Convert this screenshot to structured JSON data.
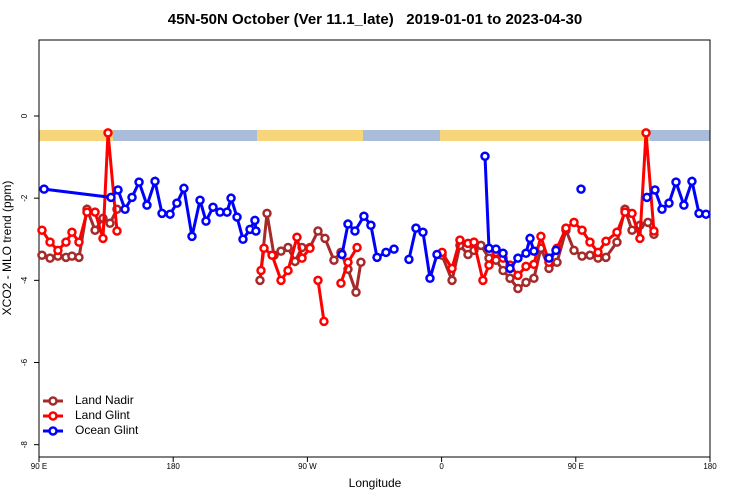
{
  "chart_data": {
    "type": "line",
    "title": "45N-50N October (Ver 11.1_late)   2019-01-01 to 2023-04-30",
    "x_label": "Longitude",
    "y_label": "XCO2 - MLO trend (ppm)",
    "xlim": [
      90,
      540
    ],
    "ylim": [
      -8.3,
      1.85
    ],
    "xticks": [
      {
        "value": 90,
        "label": "90 E"
      },
      180,
      {
        "value": 270,
        "label": "90 W"
      },
      {
        "value": 360,
        "label": "0"
      },
      {
        "value": 450,
        "label": "90 E"
      },
      {
        "value": 540,
        "label": "180"
      }
    ],
    "yticks": [
      -8,
      -6,
      -4,
      -2,
      0
    ],
    "legend": "lower left",
    "series": [
      {
        "name": "Land Nadir",
        "color": "#a52a2a",
        "x": [
          92.0,
          97.4,
          102.7,
          108.1,
          112.1,
          116.8,
          122.2,
          127.6,
          132.9,
          137.6,
          142.3,
          null,
          238.2,
          242.9,
          247.6,
          252.3,
          257.0,
          261.7,
          266.4,
          271.7,
          277.1,
          281.8,
          287.8,
          292.5,
          297.2,
          302.6,
          305.9,
          null,
          360.3,
          367.0,
          372.3,
          377.7,
          381.7,
          386.4,
          391.8,
          396.5,
          401.2,
          405.9,
          411.2,
          416.6,
          421.9,
          426.6,
          432.0,
          437.4,
          443.4,
          448.8,
          454.2,
          459.5,
          464.9,
          470.2,
          477.6,
          483.0,
          487.7,
          493.0,
          498.4,
          502.4
        ],
        "values": [
          -3.39,
          -3.46,
          -3.41,
          -3.44,
          -3.41,
          -3.44,
          -2.27,
          -2.78,
          -2.49,
          -2.61,
          -2.27,
          null,
          -4.0,
          -2.37,
          -3.39,
          -3.29,
          -3.2,
          -3.54,
          -3.2,
          -3.2,
          -2.8,
          -2.98,
          -3.51,
          -3.32,
          -3.73,
          -4.29,
          -3.56,
          null,
          -3.39,
          -4.0,
          -3.15,
          -3.37,
          -3.27,
          -3.15,
          -3.46,
          -3.51,
          -3.76,
          -3.95,
          -4.2,
          -4.05,
          -3.95,
          -3.22,
          -3.71,
          -3.56,
          -2.78,
          -3.27,
          -3.41,
          -3.39,
          -3.46,
          -3.44,
          -3.07,
          -2.27,
          -2.78,
          -2.66,
          -2.59,
          -2.88
        ]
      },
      {
        "name": "Land Glint",
        "color": "#ff0000",
        "x": [
          92.0,
          97.4,
          102.7,
          108.1,
          112.1,
          116.8,
          122.2,
          127.6,
          132.9,
          136.3,
          142.3,
          null,
          238.9,
          240.9,
          246.3,
          252.3,
          257.0,
          263.0,
          266.4,
          271.7,
          null,
          277.1,
          281.1,
          null,
          292.5,
          297.2,
          303.3,
          null,
          360.3,
          367.0,
          372.3,
          377.7,
          381.7,
          387.7,
          391.8,
          396.5,
          401.2,
          405.9,
          411.2,
          416.6,
          421.9,
          426.6,
          432.0,
          437.4,
          443.4,
          448.8,
          454.2,
          459.5,
          464.9,
          470.2,
          477.6,
          483.0,
          487.7,
          493.0,
          497.1,
          502.4
        ],
        "values": [
          -2.78,
          -3.07,
          -3.27,
          -3.07,
          -2.83,
          -3.07,
          -2.34,
          -2.34,
          -2.98,
          -0.41,
          -2.8,
          null,
          -3.76,
          -3.22,
          -3.39,
          -4.0,
          -3.76,
          -2.95,
          -3.46,
          -3.22,
          null,
          -4.0,
          -5.0,
          null,
          -4.07,
          -3.56,
          -3.2,
          null,
          -3.32,
          -3.71,
          -3.02,
          -3.1,
          -3.07,
          -4.0,
          -3.63,
          -3.32,
          -3.46,
          -3.63,
          -3.88,
          -3.66,
          -3.61,
          -2.93,
          -3.56,
          -3.22,
          -2.73,
          -2.59,
          -2.78,
          -3.07,
          -3.32,
          -3.05,
          -2.83,
          -2.34,
          -2.37,
          -2.98,
          -0.41,
          -2.8
        ]
      },
      {
        "name": "Ocean Glint",
        "color": "#0000ff",
        "x": [
          93.4,
          138.3,
          143.0,
          147.7,
          152.4,
          157.1,
          162.4,
          167.8,
          172.5,
          177.9,
          182.5,
          187.2,
          192.6,
          198.0,
          202.0,
          206.7,
          211.4,
          216.1,
          218.8,
          222.8,
          226.8,
          231.5,
          234.8,
          235.5,
          null,
          293.2,
          297.2,
          301.9,
          307.9,
          312.6,
          316.7,
          322.7,
          328.1,
          null,
          338.1,
          342.8,
          347.5,
          352.2,
          356.9,
          null,
          389.1,
          391.8,
          396.5,
          401.2,
          405.9,
          411.2,
          416.6,
          419.3,
          421.9,
          null,
          432.0,
          436.7,
          null,
          453.5,
          null,
          497.7,
          503.1,
          507.8,
          512.5,
          517.2,
          522.5,
          527.9,
          532.6,
          537.3
        ],
        "values": [
          -1.78,
          -1.98,
          -1.8,
          -2.27,
          -1.98,
          -1.61,
          -2.17,
          -1.59,
          -2.37,
          -2.39,
          -2.12,
          -1.76,
          -2.93,
          -2.05,
          -2.56,
          -2.22,
          -2.34,
          -2.34,
          -2.0,
          -2.46,
          -3.0,
          -2.76,
          -2.54,
          -2.8,
          null,
          -3.37,
          -2.63,
          -2.8,
          -2.44,
          -2.66,
          -3.44,
          -3.32,
          -3.24,
          null,
          -3.49,
          -2.73,
          -2.83,
          -3.95,
          -3.37,
          null,
          -0.98,
          -3.22,
          -3.24,
          -3.34,
          -3.71,
          -3.46,
          -3.34,
          -2.98,
          -3.29,
          null,
          -3.46,
          -3.27,
          null,
          -1.78,
          null,
          -1.98,
          -1.8,
          -2.27,
          -2.12,
          -1.61,
          -2.17,
          -1.59,
          -2.37,
          -2.39
        ]
      }
    ]
  }
}
